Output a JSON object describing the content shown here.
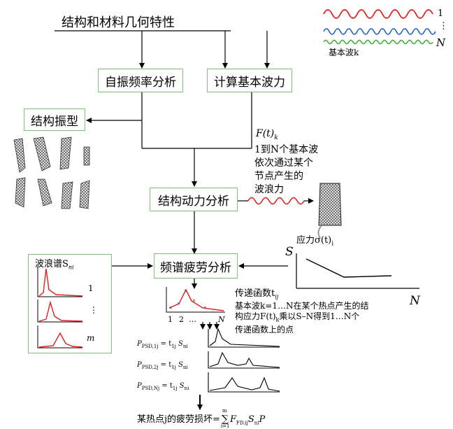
{
  "title": "结构和材料几何特性",
  "boxes": {
    "natural_freq": "自振频率分析",
    "wave_force": "计算基本波力",
    "mode_shape": "结构振型",
    "dynamic": "结构动力分析",
    "fatigue": "频谱疲劳分析"
  },
  "wave_legend": {
    "top": "1",
    "dots": "⋮",
    "bottom": "N",
    "caption": "基本波k"
  },
  "force_note": {
    "symbol": "F(t)",
    "subscript": "k",
    "lines": [
      "1到N个基本波",
      "依次通过某个",
      "节点产生的",
      "波浪力"
    ]
  },
  "stress_label": "应力σ(t)",
  "stress_sub": "i",
  "sn_curve": {
    "ylabel": "S",
    "xlabel": "N"
  },
  "wave_spectrum": {
    "label": "波浪谱S",
    "label_sub": "ni",
    "row1": "1",
    "row2": "⋮",
    "row3": "m"
  },
  "transfer": {
    "title": "传递函数t",
    "title_sub": "ij",
    "axis_labels": [
      "1",
      "2",
      "…",
      "N"
    ],
    "desc_lines": [
      "基本波k=1…N在某个热点产生的结",
      "构应力F(t)",
      "乘以S–N得到1…N个",
      "传递函数上的点"
    ],
    "desc_sub": "k"
  },
  "psd_equations": [
    {
      "lhs": "P",
      "lhs_sub": "PSD,1j",
      "eq": " = t",
      "t_sub": "1j",
      "s": "S",
      "s_sub": "ni"
    },
    {
      "lhs": "P",
      "lhs_sub": "PSD,2j",
      "eq": " = t",
      "t_sub": "1j",
      "s": "S",
      "s_sub": "ni"
    },
    {
      "lhs": "P",
      "lhs_sub": "PSD,Nj",
      "eq": " = t",
      "t_sub": "1j",
      "s": "S",
      "s_sub": "ni"
    }
  ],
  "damage": {
    "text": "某热点j的疲劳损坏=",
    "sum_top": "m",
    "sum_bottom": "i=1",
    "F": "F",
    "F_sub": "FD,ij",
    "S": "S",
    "S_sub": "ni",
    "P": "P"
  },
  "colors": {
    "box_border": "#7fc27a",
    "wave_red": "#e02020",
    "wave_blue": "#1f5fc8",
    "wave_green": "#3aaa2a"
  }
}
